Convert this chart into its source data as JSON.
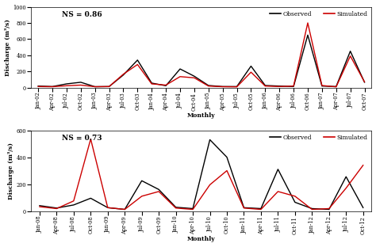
{
  "panel1": {
    "ns": "NS = 0.86",
    "ylim": [
      0,
      1000
    ],
    "yticks": [
      0,
      200,
      400,
      600,
      800,
      1000
    ],
    "xlabel": "Monthly",
    "ylabel": "Discharge (m³/s)",
    "xtick_labels": [
      "Jan-02",
      "Apr-02",
      "Jul-02",
      "Oct-02",
      "Jan-03",
      "Apr-03",
      "Jul-03",
      "Oct-03",
      "Jan-04",
      "Apr-04",
      "Jul-04",
      "Oct-04",
      "Jan-05",
      "Apr-05",
      "Jul-05",
      "Oct-05",
      "Jan-06",
      "Apr-06",
      "Jul-06",
      "Oct-06",
      "Jan-07",
      "Apr-07",
      "Jul-07",
      "Oct-07"
    ],
    "observed": [
      18,
      12,
      45,
      65,
      10,
      12,
      155,
      340,
      55,
      22,
      230,
      140,
      25,
      12,
      12,
      265,
      25,
      18,
      12,
      650,
      18,
      12,
      450,
      65
    ],
    "simulated": [
      12,
      10,
      22,
      30,
      10,
      12,
      165,
      285,
      45,
      30,
      135,
      120,
      18,
      10,
      8,
      190,
      18,
      12,
      18,
      800,
      25,
      8,
      390,
      70
    ]
  },
  "panel2": {
    "ns": "NS = 0.73",
    "ylim": [
      0,
      600
    ],
    "yticks": [
      0,
      200,
      400,
      600
    ],
    "xlabel": "Monthly",
    "ylabel": "Discharge (m³/s)",
    "xtick_labels": [
      "Jan-08",
      "Apr-08",
      "Jul-08",
      "Oct-08",
      "Jan-09",
      "Apr-09",
      "Jul-09",
      "Oct-09",
      "Jan-10",
      "Apr-10",
      "Jul-10",
      "Oct-10",
      "Jan-11",
      "Apr-11",
      "Jul-11",
      "Oct-11",
      "Jan-12",
      "Apr-12",
      "Jul-12",
      "Oct-12"
    ],
    "observed": [
      40,
      22,
      45,
      95,
      25,
      12,
      225,
      160,
      28,
      18,
      530,
      400,
      25,
      18,
      310,
      65,
      18,
      12,
      255,
      25
    ],
    "simulated": [
      32,
      18,
      75,
      535,
      25,
      12,
      110,
      145,
      22,
      12,
      195,
      300,
      22,
      12,
      145,
      110,
      12,
      18,
      170,
      340
    ]
  },
  "observed_color": "#000000",
  "simulated_color": "#cc0000",
  "line_width": 1.0,
  "bg_color": "#ffffff",
  "tick_fontsize": 4.8,
  "label_fontsize": 5.5,
  "ns_fontsize": 6.5,
  "legend_fontsize": 5.5
}
